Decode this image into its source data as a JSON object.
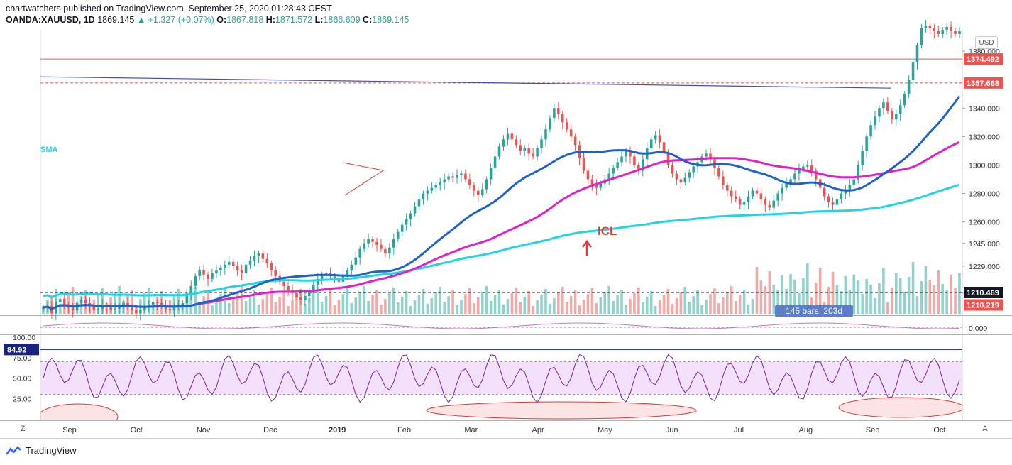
{
  "header": {
    "line1": "chartwatchers published on TradingView.com, September 25, 2020 01:28:43 CEST",
    "symbol": "OANDA:XAUUSD, 1D",
    "last": "1869.145",
    "change": "▲ +1.327 (+0.07%)",
    "o_label": "O:",
    "o": "1867.818",
    "h_label": "H:",
    "h": "1871.572",
    "l_label": "L:",
    "l": "1866.609",
    "c_label": "C:",
    "c": "1869.145"
  },
  "currency_button": "USD",
  "bars_label": "145 bars, 203d",
  "annotations": {
    "sma_label": "SMA",
    "icl_label": "ICL"
  },
  "footer": {
    "brand": "TradingView"
  },
  "buttons": {
    "z": "Z",
    "a": "A"
  },
  "colors": {
    "up": "#26a69a",
    "down": "#ef5350",
    "sma_short": "#1e64c8",
    "sma_mid": "#e020c8",
    "sma_long": "#22d3e6",
    "rsi": "#7b1fa2",
    "rsi_band": "#f3e1fb"
  },
  "chart_data": {
    "type": "candlestick",
    "price_axis": {
      "ticks": [
        "1380.000",
        "1340.000",
        "1320.000",
        "1300.000",
        "1280.000",
        "1260.000",
        "1245.000",
        "1229.000",
        "1210.000"
      ],
      "ylim": [
        1195,
        1395
      ]
    },
    "price_labels": [
      {
        "value": 1374.492,
        "text": "1374.492",
        "color": "#ef5350",
        "line": "solid"
      },
      {
        "value": 1357.668,
        "text": "1357.668",
        "color": "#ef5350",
        "line": "dashed"
      },
      {
        "value": 1210.469,
        "text": "1210.469",
        "color": "#131722",
        "line": "dashed"
      },
      {
        "value": 1210.219,
        "text": "1210.219",
        "color": "#ef5350",
        "line": "none"
      }
    ],
    "x_ticks": [
      "Sep",
      "Oct",
      "Nov",
      "Dec",
      "2019",
      "Feb",
      "Mar",
      "Apr",
      "May",
      "Jun",
      "Jul",
      "Aug",
      "Sep",
      "Oct"
    ],
    "candles_close": [
      1200,
      1201,
      1196,
      1204,
      1206,
      1202,
      1200,
      1198,
      1203,
      1205,
      1203,
      1201,
      1198,
      1199,
      1202,
      1200,
      1198,
      1199,
      1201,
      1203,
      1200,
      1198,
      1196,
      1198,
      1200,
      1202,
      1204,
      1203,
      1201,
      1199,
      1198,
      1200,
      1201,
      1203,
      1210,
      1215,
      1222,
      1226,
      1223,
      1220,
      1224,
      1226,
      1228,
      1230,
      1232,
      1229,
      1226,
      1224,
      1230,
      1233,
      1236,
      1238,
      1234,
      1231,
      1226,
      1222,
      1218,
      1215,
      1212,
      1210,
      1207,
      1205,
      1208,
      1212,
      1216,
      1220,
      1223,
      1224,
      1222,
      1220,
      1218,
      1222,
      1226,
      1230,
      1235,
      1241,
      1245,
      1248,
      1246,
      1244,
      1241,
      1238,
      1242,
      1248,
      1253,
      1258,
      1262,
      1266,
      1271,
      1276,
      1280,
      1282,
      1284,
      1286,
      1288,
      1290,
      1292,
      1291,
      1293,
      1294,
      1290,
      1286,
      1282,
      1279,
      1283,
      1290,
      1298,
      1306,
      1313,
      1318,
      1322,
      1318,
      1314,
      1310,
      1312,
      1308,
      1306,
      1312,
      1318,
      1325,
      1333,
      1340,
      1336,
      1330,
      1325,
      1320,
      1314,
      1305,
      1296,
      1290,
      1286,
      1284,
      1287,
      1290,
      1294,
      1298,
      1302,
      1306,
      1310,
      1306,
      1300,
      1296,
      1304,
      1312,
      1318,
      1321,
      1316,
      1308,
      1300,
      1294,
      1290,
      1288,
      1291,
      1295,
      1299,
      1302,
      1306,
      1308,
      1304,
      1298,
      1292,
      1286,
      1282,
      1278,
      1276,
      1272,
      1274,
      1278,
      1282,
      1280,
      1276,
      1272,
      1270,
      1275,
      1280,
      1284,
      1287,
      1290,
      1294,
      1297,
      1299,
      1300,
      1296,
      1290,
      1284,
      1278,
      1274,
      1272,
      1276,
      1280,
      1283,
      1286,
      1290,
      1300,
      1310,
      1320,
      1328,
      1334,
      1340,
      1344,
      1338,
      1332,
      1336,
      1342,
      1350,
      1360,
      1372,
      1384,
      1396,
      1398,
      1396,
      1394,
      1392,
      1395,
      1397,
      1394,
      1392,
      1394
    ],
    "rsi": {
      "label": "84.92",
      "level": 84.92,
      "ticks": [
        "100.00",
        "75.00",
        "50.00",
        "25.00"
      ],
      "band": [
        30,
        70
      ]
    },
    "oscillator": {
      "label": "0.000"
    }
  }
}
